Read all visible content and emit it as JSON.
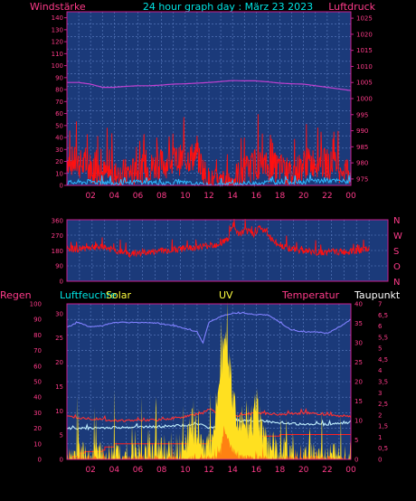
{
  "header": {
    "left_label": "Windstärke",
    "title": "24 hour graph day : März 23 2023",
    "right_label": "Luftdruck"
  },
  "colors": {
    "panel": "#1b3a7a",
    "grid": "#5d7fc4",
    "axis": "#c81e8c",
    "wind": "#ff1010",
    "gust": "#2fb8ff",
    "pressure": "#c040d0",
    "winddir": "#ff1010",
    "humidity": "#8080ff",
    "rain": "#ff2020",
    "solar": "#ffe020",
    "uv": "#ff7010",
    "temperature": "#ff3030",
    "dewpoint": "#c0f0ff",
    "text_cyan": "#00e5e5",
    "text_pink": "#ff3b8a",
    "text_yellow": "#ffff40",
    "text_white": "#ffffff"
  },
  "x_ticks": [
    "02",
    "04",
    "06",
    "08",
    "10",
    "12",
    "14",
    "16",
    "18",
    "20",
    "22",
    "00"
  ],
  "panels": {
    "wind": {
      "left_ticks": [
        "0",
        "10",
        "20",
        "30",
        "40",
        "50",
        "60",
        "70",
        "80",
        "90",
        "100",
        "110",
        "120",
        "130",
        "140"
      ],
      "right_ticks": [
        "975",
        "980",
        "985",
        "990",
        "995",
        "1000",
        "1005",
        "1010",
        "1015",
        "1020",
        "1025"
      ]
    },
    "direction": {
      "left_ticks": [
        "0",
        "90",
        "180",
        "270",
        "360"
      ],
      "compass": [
        "N",
        "W",
        "S",
        "O",
        "N"
      ]
    },
    "weather": {
      "labels": {
        "regen": "Regen",
        "luftfeuchte": "Luftfeuchte",
        "solar": "Solar",
        "uv": "UV",
        "temperatur": "Temperatur",
        "taupunkt": "Taupunkt"
      },
      "regen_ticks": [
        "0",
        "10",
        "20",
        "30",
        "40",
        "50",
        "60",
        "70",
        "80",
        "90",
        "100"
      ],
      "humidity_ticks": [
        "0",
        "5",
        "10",
        "15",
        "20",
        "25",
        "30"
      ],
      "temp_ticks": [
        "0",
        "5",
        "10",
        "15",
        "20",
        "25",
        "30",
        "35",
        "40"
      ],
      "uv_ticks": [
        "0",
        "0,5",
        "1",
        "1,5",
        "2",
        "2,5",
        "3",
        "3,5",
        "4",
        "4,5",
        "5",
        "5,5",
        "6",
        "6,5",
        "7"
      ]
    }
  },
  "chart_data": [
    {
      "type": "line",
      "title": "24 hour graph day : März 23 2023",
      "xlabel": "",
      "ylabel": "Windstärke",
      "y2label": "Luftdruck",
      "xlim": [
        0,
        24
      ],
      "ylim": [
        0,
        145
      ],
      "y2lim": [
        973,
        1027
      ],
      "series": [
        {
          "name": "",
          "axis": "pressure",
          "x": [
            0,
            1,
            2,
            3,
            4,
            5,
            6,
            7,
            8,
            9,
            10,
            11,
            12,
            13,
            14,
            15,
            16,
            17,
            18,
            19,
            20,
            21,
            22,
            23,
            24
          ],
          "values": [
            1005,
            1005,
            1004.5,
            1003.5,
            1003.5,
            1003.8,
            1004,
            1004,
            1004.2,
            1004.5,
            1004.6,
            1004.8,
            1005,
            1005.3,
            1005.6,
            1005.5,
            1005.5,
            1005.2,
            1004.8,
            1004.6,
            1004.5,
            1004,
            1003.5,
            1003,
            1002.5
          ]
        },
        {
          "name": "",
          "axis": "wind",
          "style": "noisy",
          "x": [
            0,
            1,
            2,
            3,
            4,
            5,
            6,
            7,
            8,
            9,
            10,
            11,
            12,
            13,
            14,
            15,
            16,
            17,
            18,
            19,
            20,
            21,
            22,
            23,
            24
          ],
          "values": [
            22,
            18,
            15,
            10,
            8,
            10,
            12,
            15,
            18,
            20,
            22,
            25,
            2,
            0,
            5,
            12,
            18,
            15,
            15,
            8,
            18,
            20,
            18,
            15,
            12
          ]
        },
        {
          "name": "",
          "axis": "wind",
          "x": [
            0,
            2,
            4,
            6,
            8,
            10,
            12,
            14,
            16,
            18,
            20,
            22,
            24
          ],
          "values": [
            2,
            3,
            2,
            3,
            2,
            2,
            0,
            1,
            2,
            3,
            3,
            4,
            3
          ]
        }
      ]
    },
    {
      "type": "line",
      "xlabel": "",
      "ylabel": "",
      "xlim": [
        0,
        24
      ],
      "ylim": [
        0,
        365
      ],
      "series": [
        {
          "name": "",
          "style": "noisy",
          "x": [
            0,
            1,
            2,
            3,
            4,
            5,
            6,
            7,
            8,
            9,
            10,
            11,
            12,
            12.8,
            13.2,
            13.6,
            14.2,
            14.8,
            15.3,
            15.8,
            16.5,
            17,
            18,
            19,
            20,
            21,
            22,
            23,
            24
          ],
          "values": [
            195,
            190,
            205,
            200,
            180,
            160,
            170,
            175,
            185,
            190,
            200,
            210,
            220,
            250,
            330,
            280,
            300,
            280,
            320,
            290,
            230,
            210,
            190,
            180,
            170,
            175,
            175,
            180,
            190
          ]
        }
      ]
    },
    {
      "type": "line",
      "xlabel": "",
      "ylabel": "",
      "xlim": [
        0,
        24
      ],
      "ylim": [
        0,
        100
      ],
      "y2lim": [
        0,
        40
      ],
      "series": [
        {
          "name": "Luftfeuchte",
          "axis": "humidity",
          "x": [
            0,
            1,
            2,
            3,
            4,
            5,
            6,
            7,
            8,
            9,
            10,
            11,
            11.5,
            12,
            13,
            14,
            15,
            16,
            17,
            18,
            19,
            20,
            21,
            22,
            23,
            24
          ],
          "values": [
            85,
            88,
            85,
            86,
            88,
            88,
            88,
            88,
            87,
            86,
            84,
            82,
            75,
            88,
            92,
            94,
            94,
            93,
            93,
            88,
            83,
            82,
            82,
            81,
            85,
            90
          ]
        },
        {
          "name": "Temperatur",
          "axis": "temp",
          "x": [
            0,
            2,
            4,
            6,
            8,
            10,
            11.5,
            12,
            13,
            14,
            15,
            16,
            18,
            20,
            22,
            24
          ],
          "values": [
            11,
            10.5,
            10,
            10,
            10.2,
            11,
            12,
            13,
            11.5,
            11,
            11.5,
            12,
            11.5,
            12,
            11.5,
            11
          ]
        },
        {
          "name": "Taupunkt",
          "axis": "temp",
          "x": [
            0,
            2,
            4,
            6,
            8,
            10,
            11.5,
            12,
            13,
            14,
            15,
            16,
            18,
            20,
            22,
            24
          ],
          "values": [
            8,
            8,
            8.2,
            8.3,
            8.5,
            8.8,
            9,
            8,
            8.5,
            9.5,
            10,
            10,
            9.5,
            9,
            9,
            9.5
          ]
        },
        {
          "name": "Regen",
          "axis": "rain",
          "style": "step",
          "x": [
            0,
            0.5,
            1,
            1.5,
            2,
            3,
            3.2,
            4,
            11.6,
            12,
            13,
            13.5,
            14,
            18,
            24
          ],
          "values": [
            0,
            2,
            4,
            5,
            5,
            6,
            8,
            10,
            10,
            12,
            12,
            14,
            15,
            16,
            16
          ]
        },
        {
          "name": "Solar",
          "axis": "solar",
          "style": "area",
          "x": [
            0,
            6,
            7,
            8,
            9,
            10,
            10.5,
            11,
            11.5,
            12,
            12.5,
            13,
            13.5,
            14,
            14.5,
            15,
            15.5,
            16,
            16.5,
            17,
            18,
            19,
            24
          ],
          "values": [
            0,
            0,
            0.5,
            1,
            1.5,
            2,
            6,
            4,
            3,
            2,
            5,
            15,
            20,
            10,
            6,
            8,
            5,
            9,
            4,
            2,
            1,
            0,
            0
          ]
        },
        {
          "name": "UV",
          "axis": "uv",
          "style": "area",
          "x": [
            0,
            12.5,
            13,
            13.3,
            13.5,
            13.8,
            14,
            14.5,
            15,
            16,
            24
          ],
          "values": [
            0,
            0,
            0.4,
            1.6,
            1.0,
            0.6,
            0.4,
            0.2,
            0.1,
            0,
            0
          ]
        }
      ]
    }
  ]
}
